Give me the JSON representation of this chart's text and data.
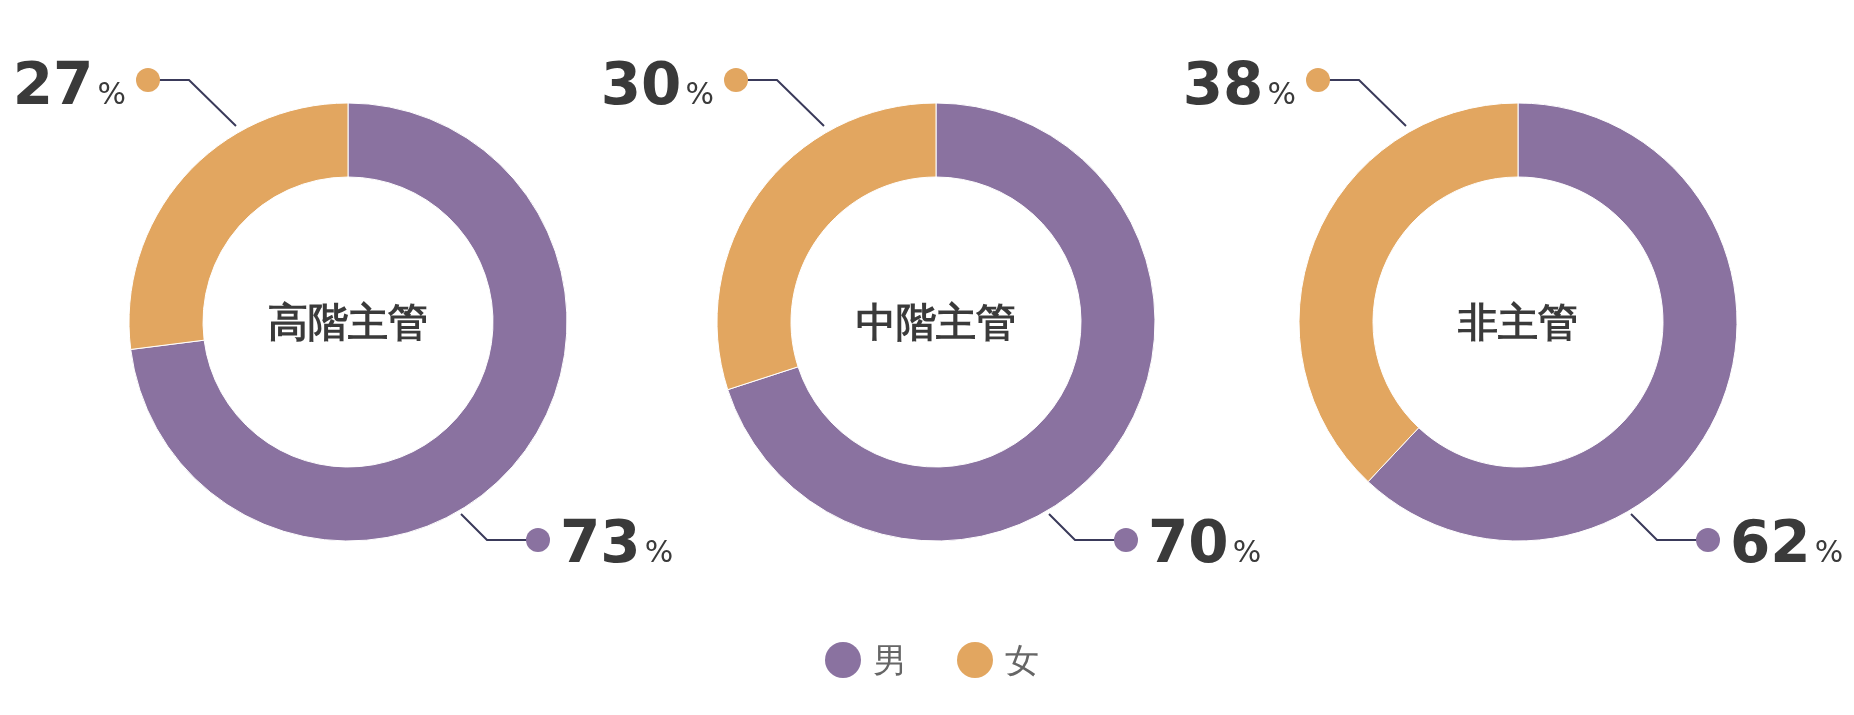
{
  "chart_data": [
    {
      "type": "donut",
      "title": "高階主管",
      "categories": [
        null,
        null
      ],
      "values": [
        73,
        27
      ],
      "colors": [
        "#8a72a0",
        "#e2a660"
      ],
      "value_labels": [
        "73%",
        "27%"
      ]
    },
    {
      "type": "donut",
      "title": "中階主管",
      "categories": [
        "男",
        "女"
      ],
      "values": [
        70,
        30
      ],
      "colors": [
        "#8a72a0",
        "#e2a660"
      ],
      "value_labels": [
        "70%",
        "30%"
      ],
      "legend": "bottom"
    },
    {
      "type": "donut",
      "title": "非主管",
      "categories": [
        null,
        null
      ],
      "values": [
        62,
        38
      ],
      "colors": [
        "#8a72a0",
        "#e2a660"
      ],
      "value_labels": [
        "62%",
        "38%"
      ]
    }
  ]
}
